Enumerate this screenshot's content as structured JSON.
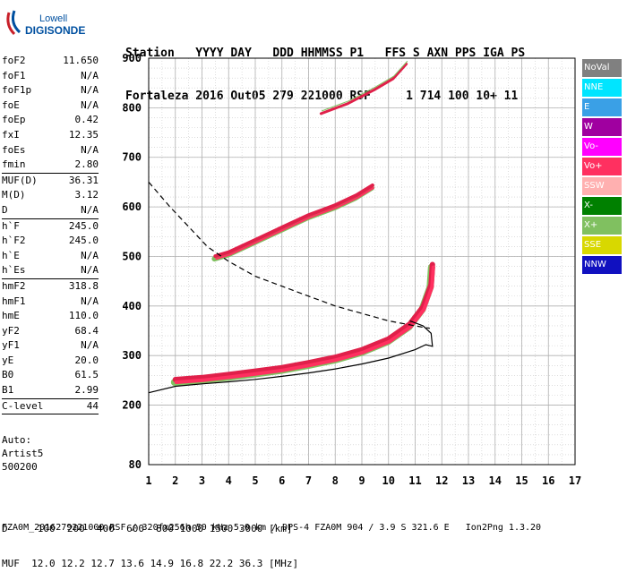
{
  "logo": {
    "line1": "Lowell",
    "line2": "DIGISONDE"
  },
  "header": {
    "labels": [
      "Station",
      "YYYY DAY",
      "DDD HHMMSS P1",
      "FFS S AXN PPS IGA PS"
    ],
    "values": [
      "Fortaleza",
      "2016 Out05",
      "279 221000 RSF",
      "1 714 100 10+ 11"
    ]
  },
  "params": [
    {
      "label": "foF2",
      "value": "11.650"
    },
    {
      "label": "foF1",
      "value": "N/A"
    },
    {
      "label": "foF1p",
      "value": "N/A"
    },
    {
      "label": "foE",
      "value": "N/A"
    },
    {
      "label": "foEp",
      "value": "0.42"
    },
    {
      "label": "fxI",
      "value": "12.35"
    },
    {
      "label": "foEs",
      "value": "N/A"
    },
    {
      "label": "fmin",
      "value": "2.80"
    },
    {
      "sep": true
    },
    {
      "label": "MUF(D)",
      "value": "36.31"
    },
    {
      "label": "M(D)",
      "value": "3.12"
    },
    {
      "label": "D",
      "value": "N/A"
    },
    {
      "sep": true
    },
    {
      "label": "h`F",
      "value": "245.0"
    },
    {
      "label": "h`F2",
      "value": "245.0"
    },
    {
      "label": "h`E",
      "value": "N/A"
    },
    {
      "label": "h`Es",
      "value": "N/A"
    },
    {
      "sep": true
    },
    {
      "label": "hmF2",
      "value": "318.8"
    },
    {
      "label": "hmF1",
      "value": "N/A"
    },
    {
      "label": "hmE",
      "value": "110.0"
    },
    {
      "label": "yF2",
      "value": "68.4"
    },
    {
      "label": "yF1",
      "value": "N/A"
    },
    {
      "label": "yE",
      "value": "20.0"
    },
    {
      "label": "B0",
      "value": "61.5"
    },
    {
      "label": "B1",
      "value": "2.99"
    },
    {
      "sep": true
    },
    {
      "label": "C-level",
      "value": "44"
    },
    {
      "sep": true
    }
  ],
  "auto": {
    "line1": "Auto:",
    "line2": "Artist5",
    "line3": "500200"
  },
  "legend": [
    {
      "label": "NoVal",
      "color": "#808080"
    },
    {
      "label": "NNE",
      "color": "#00e5ff"
    },
    {
      "label": "E",
      "color": "#3aa0e6"
    },
    {
      "label": "W",
      "color": "#a000a0"
    },
    {
      "label": "Vo-",
      "color": "#ff00ff"
    },
    {
      "label": "Vo+",
      "color": "#ff3060"
    },
    {
      "label": "SSW",
      "color": "#ffb0b0"
    },
    {
      "label": "X-",
      "color": "#008000"
    },
    {
      "label": "X+",
      "color": "#80c060"
    },
    {
      "label": "SSE",
      "color": "#d8d800"
    },
    {
      "label": "NNW",
      "color": "#1010c0"
    }
  ],
  "footer": {
    "line1": "D     100  200  400  600  800 1000 1500 3000 [km]",
    "line2": "MUF  12.0 12.2 12.7 13.6 14.9 16.8 22.2 36.3 [MHz]",
    "line3": "FZA0M_2016279221000.RSF / 320fx256h 50 kHz 5.0 km / DPS-4 FZA0M 904 / 3.9 S 321.6 E   Ion2Png 1.3.20"
  },
  "chart_data": {
    "type": "scatter",
    "xlim": [
      1,
      17
    ],
    "ylim": [
      80,
      900
    ],
    "x_ticks": [
      1,
      2,
      3,
      4,
      5,
      6,
      7,
      8,
      9,
      10,
      11,
      12,
      13,
      14,
      15,
      16,
      17
    ],
    "y_ticks": [
      80,
      200,
      300,
      400,
      500,
      600,
      700,
      800,
      900
    ],
    "grid": true,
    "ordinary_trace": {
      "x": [
        2.0,
        3.0,
        4.0,
        5.0,
        6.0,
        7.0,
        8.0,
        9.0,
        10.0,
        10.8,
        11.3,
        11.6,
        11.65
      ],
      "y": [
        248,
        252,
        258,
        265,
        272,
        282,
        293,
        308,
        330,
        360,
        395,
        440,
        480
      ]
    },
    "second_hop_trace": {
      "x": [
        3.5,
        4.0,
        5.0,
        6.0,
        7.0,
        8.0,
        8.8,
        9.4
      ],
      "y": [
        497,
        505,
        530,
        555,
        580,
        600,
        620,
        640
      ]
    },
    "third_hop_trace": {
      "x": [
        7.5,
        8.5,
        9.5,
        10.2,
        10.7
      ],
      "y": [
        790,
        810,
        838,
        860,
        890
      ]
    },
    "profile_solid": {
      "x": [
        1.0,
        2.0,
        3.0,
        4.0,
        5.0,
        6.0,
        7.0,
        8.0,
        9.0,
        10.0,
        11.0,
        11.4,
        11.65,
        11.6,
        11.3,
        10.8
      ],
      "y": [
        225,
        238,
        243,
        247,
        252,
        258,
        265,
        273,
        283,
        295,
        312,
        322,
        318.8,
        345,
        360,
        370
      ]
    },
    "profile_dashed": {
      "x": [
        1.0,
        1.8,
        2.5,
        3.2,
        4.0,
        5.0,
        6.0,
        7.0,
        8.0,
        9.0,
        10.0,
        10.8,
        11.3,
        11.55
      ],
      "y": [
        650,
        600,
        560,
        520,
        490,
        460,
        440,
        420,
        400,
        385,
        370,
        362,
        357,
        355
      ]
    }
  }
}
